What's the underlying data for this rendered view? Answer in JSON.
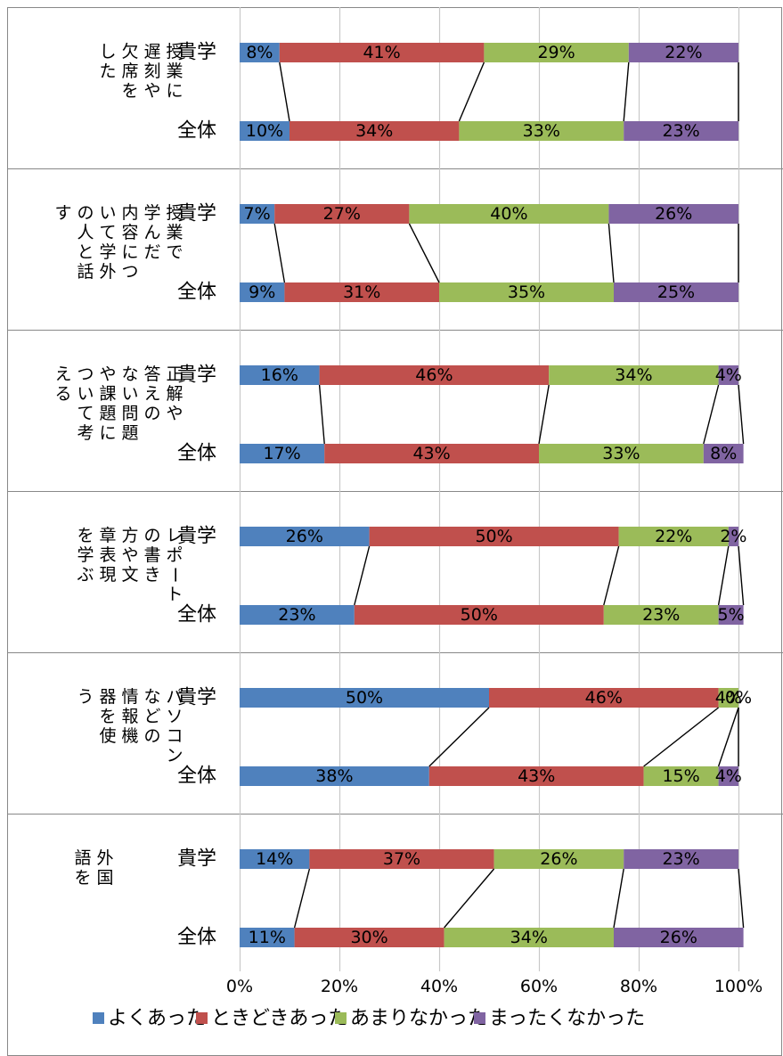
{
  "chart_data": {
    "type": "bar",
    "stacked": "percent",
    "orientation": "horizontal",
    "xlim": [
      0,
      100
    ],
    "x_ticks": [
      "0%",
      "20%",
      "40%",
      "60%",
      "80%",
      "100%"
    ],
    "grid": true,
    "legend_position": "bottom",
    "series": [
      {
        "name": "よくあった",
        "color": "#4f81bd"
      },
      {
        "name": "ときどきあった",
        "color": "#c0504d"
      },
      {
        "name": "あまりなかった",
        "color": "#9bbb59"
      },
      {
        "name": "まったくなかった",
        "color": "#8064a2"
      }
    ],
    "groups": [
      {
        "label_columns": [
          "授業に",
          "遅刻や",
          "欠席を",
          "した"
        ],
        "rows": [
          {
            "label": "貴学",
            "values": [
              8,
              41,
              29,
              22
            ]
          },
          {
            "label": "全体",
            "values": [
              10,
              34,
              33,
              23
            ]
          }
        ]
      },
      {
        "label_columns": [
          "授業で",
          "学んだ",
          "内容につ",
          "いて学外",
          "の人と話",
          "す"
        ],
        "rows": [
          {
            "label": "貴学",
            "values": [
              7,
              27,
              40,
              26
            ]
          },
          {
            "label": "全体",
            "values": [
              9,
              31,
              35,
              25
            ]
          }
        ]
      },
      {
        "label_columns": [
          "正解や",
          "答えの",
          "ない問題",
          "や課題に",
          "ついて考",
          "える"
        ],
        "rows": [
          {
            "label": "貴学",
            "values": [
              16,
              46,
              34,
              4
            ]
          },
          {
            "label": "全体",
            "values": [
              17,
              43,
              33,
              8
            ]
          }
        ]
      },
      {
        "label_columns": [
          "レポート",
          "の書き",
          "方や文",
          "章表現",
          "を学ぶ"
        ],
        "rows": [
          {
            "label": "貴学",
            "values": [
              26,
              50,
              22,
              2
            ]
          },
          {
            "label": "全体",
            "values": [
              23,
              50,
              23,
              5
            ]
          }
        ]
      },
      {
        "label_columns": [
          "パソコン",
          "などの",
          "情報機",
          "器を使",
          "う"
        ],
        "rows": [
          {
            "label": "貴学",
            "values": [
              50,
              46,
              4,
              0
            ]
          },
          {
            "label": "全体",
            "values": [
              38,
              43,
              15,
              4
            ]
          }
        ]
      },
      {
        "label_columns": [
          "外国",
          "語を"
        ],
        "rows": [
          {
            "label": "貴学",
            "values": [
              14,
              37,
              26,
              23
            ]
          },
          {
            "label": "全体",
            "values": [
              11,
              30,
              34,
              26
            ]
          }
        ]
      }
    ]
  }
}
